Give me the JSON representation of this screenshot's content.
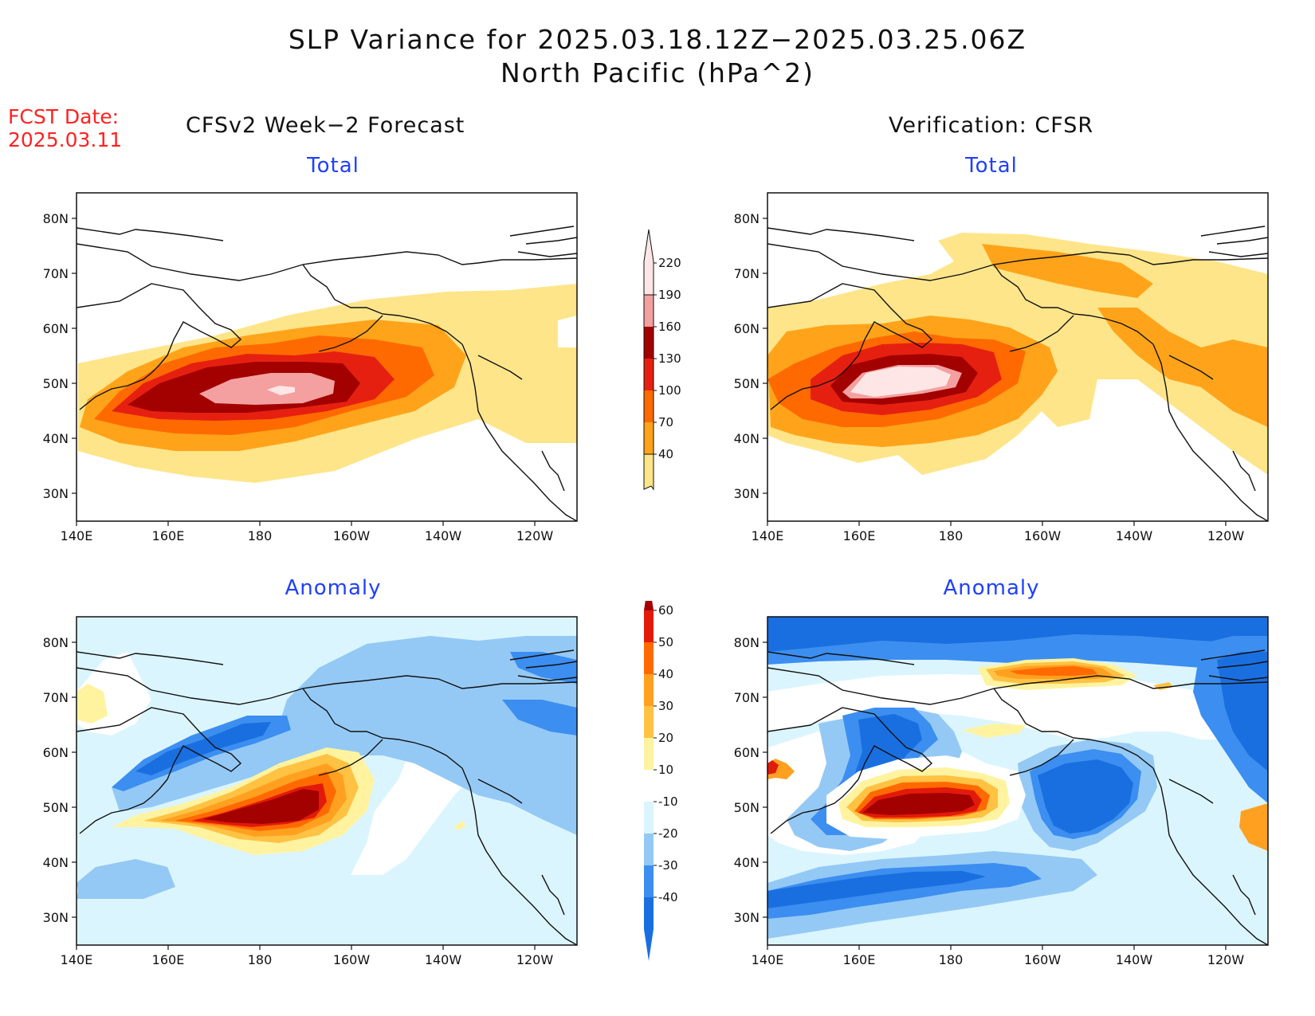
{
  "title_line1": "SLP Variance for 2025.03.18.12Z−2025.03.25.06Z",
  "title_line2": "North Pacific (hPa^2)",
  "fcst_label": "FCST Date:",
  "fcst_date": "2025.03.11",
  "left_column_title": "CFSv2 Week−2 Forecast",
  "right_column_title": "Verification: CFSR",
  "panels": {
    "top_left": "Total",
    "top_right": "Total",
    "bottom_left": "Anomaly",
    "bottom_right": "Anomaly"
  },
  "lat_ticks": [
    "80N",
    "70N",
    "60N",
    "50N",
    "40N",
    "30N"
  ],
  "lon_ticks": [
    "140E",
    "160E",
    "180",
    "160W",
    "140W",
    "120W"
  ],
  "total_colorbar": {
    "labels": [
      "40",
      "70",
      "100",
      "130",
      "160",
      "190",
      "220"
    ],
    "colors": [
      "#ffe58a",
      "#ffa41a",
      "#ff6a00",
      "#e62010",
      "#a30000",
      "#f4a0a0",
      "#ffe6e6"
    ]
  },
  "anomaly_colorbar": {
    "labels": [
      "-40",
      "-30",
      "-20",
      "-10",
      "10",
      "20",
      "30",
      "40",
      "50",
      "60"
    ],
    "colors": [
      "#1a6fe0",
      "#3c8ef0",
      "#94c9f5",
      "#dbf5ff",
      "#ffffff",
      "#fff3a0",
      "#ffc243",
      "#ffa020",
      "#ff6a00",
      "#e21a0a",
      "#a30000"
    ]
  }
}
